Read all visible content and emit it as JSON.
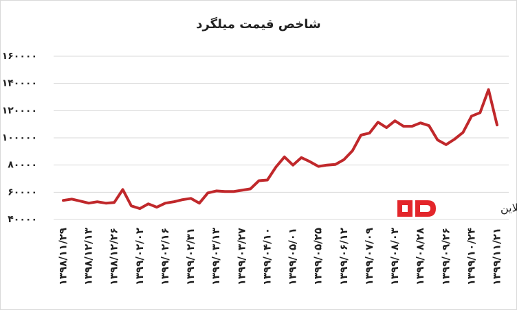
{
  "chart_data": {
    "type": "line",
    "title": "شاخص قیمت میلگرد",
    "watermark": "آهن آنلاین",
    "categories": [
      "۱۳۹۸/۱۱/۲۹",
      null,
      null,
      "۱۳۹۸/۱۲/۱۳",
      null,
      null,
      "۱۳۹۸/۱۲/۲۶",
      null,
      null,
      "۱۳۹۹/۰۲/۰۲",
      null,
      null,
      "۱۳۹۹/۰۲/۱۶",
      null,
      null,
      "۱۳۹۹/۰۲/۳۱",
      null,
      null,
      "۱۳۹۹/۰۳/۱۳",
      null,
      null,
      "۱۳۹۹/۰۳/۲۷",
      null,
      null,
      "۱۳۹۹/۰۴/۱۰",
      null,
      null,
      "۱۳۹۹/۰۵/۰۱",
      null,
      null,
      "۱۳۹۹/۰۵/۲۵",
      null,
      null,
      "۱۳۹۹/۰۶/۱۲",
      null,
      null,
      "۱۳۹۹/۰۷/۰۹",
      null,
      null,
      "۱۳۹۹/۰۸/۰۳",
      null,
      null,
      "۱۳۹۹/۰۸/۲۸",
      null,
      null,
      "۱۳۹۹/۰۹/۲۶",
      null,
      null,
      "۱۳۹۹/۱۰/۲۴",
      null,
      null,
      "۱۳۹۹/۱۱/۲۱"
    ],
    "values": [
      54000,
      55000,
      53500,
      52000,
      53000,
      52000,
      52500,
      62000,
      50000,
      48000,
      51500,
      49000,
      52000,
      53000,
      54500,
      55500,
      52000,
      59500,
      61000,
      60500,
      60500,
      61500,
      62500,
      68500,
      69000,
      78500,
      86000,
      80000,
      85500,
      82500,
      79000,
      80000,
      80500,
      84000,
      90500,
      102000,
      103500,
      111500,
      107500,
      112500,
      108500,
      108500,
      111000,
      109000,
      98500,
      95000,
      99000,
      104000,
      116000,
      118500,
      135500,
      109500
    ],
    "color": "#c0282b",
    "ylim": [
      40000,
      160000
    ],
    "yticks": [
      {
        "value": 40000,
        "label": "۴۰۰۰۰"
      },
      {
        "value": 60000,
        "label": "۶۰۰۰۰"
      },
      {
        "value": 80000,
        "label": "۸۰۰۰۰"
      },
      {
        "value": 100000,
        "label": "۱۰۰۰۰۰"
      },
      {
        "value": 120000,
        "label": "۱۲۰۰۰۰"
      },
      {
        "value": 140000,
        "label": "۱۴۰۰۰۰"
      },
      {
        "value": 160000,
        "label": "۱۶۰۰۰۰"
      }
    ],
    "grid": true
  }
}
